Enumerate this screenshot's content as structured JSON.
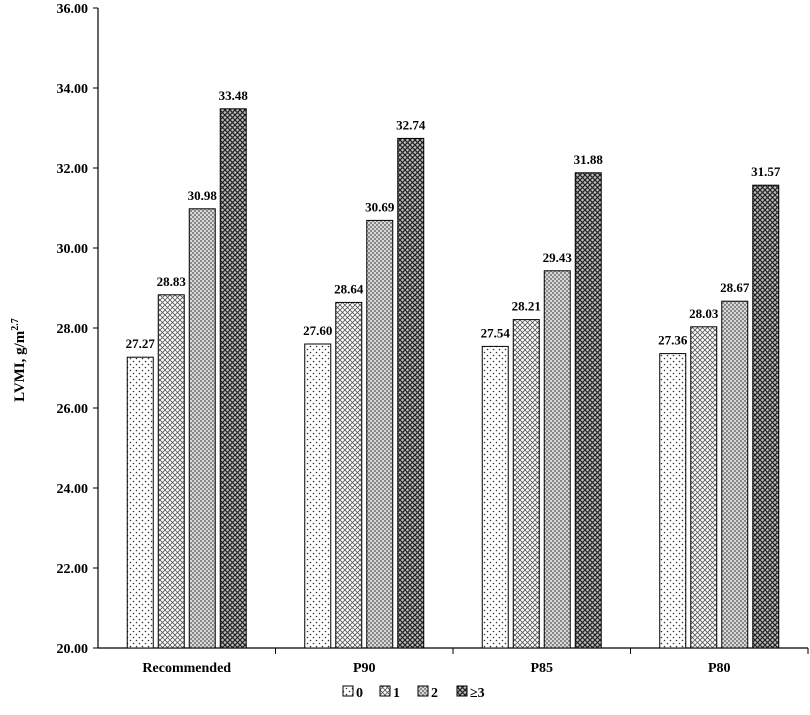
{
  "chart_data": {
    "type": "bar",
    "title": "",
    "xlabel": "",
    "ylabel": "LVMI, g/m",
    "ylabel_superscript": "2.7",
    "ylim": [
      20,
      36
    ],
    "yticks": [
      "20.00",
      "22.00",
      "24.00",
      "26.00",
      "28.00",
      "30.00",
      "32.00",
      "34.00",
      "36.00"
    ],
    "grid": false,
    "legend_position": "bottom",
    "categories": [
      "Recommended",
      "P90",
      "P85",
      "P80"
    ],
    "series": [
      {
        "name": "0",
        "values": [
          27.27,
          27.6,
          27.54,
          27.36
        ],
        "labels": [
          "27.27",
          "27.60",
          "27.54",
          "27.36"
        ],
        "pattern": "dots"
      },
      {
        "name": "1",
        "values": [
          28.83,
          28.64,
          28.21,
          28.03
        ],
        "labels": [
          "28.83",
          "28.64",
          "28.21",
          "28.03"
        ],
        "pattern": "crosshatch-light"
      },
      {
        "name": "2",
        "values": [
          30.98,
          30.69,
          29.43,
          28.67
        ],
        "labels": [
          "30.98",
          "30.69",
          "29.43",
          "28.67"
        ],
        "pattern": "grid-medium"
      },
      {
        "name": "≥3",
        "values": [
          33.48,
          32.74,
          31.88,
          31.57
        ],
        "labels": [
          "33.48",
          "32.74",
          "31.88",
          "31.57"
        ],
        "pattern": "crosshatch-dark"
      }
    ]
  }
}
